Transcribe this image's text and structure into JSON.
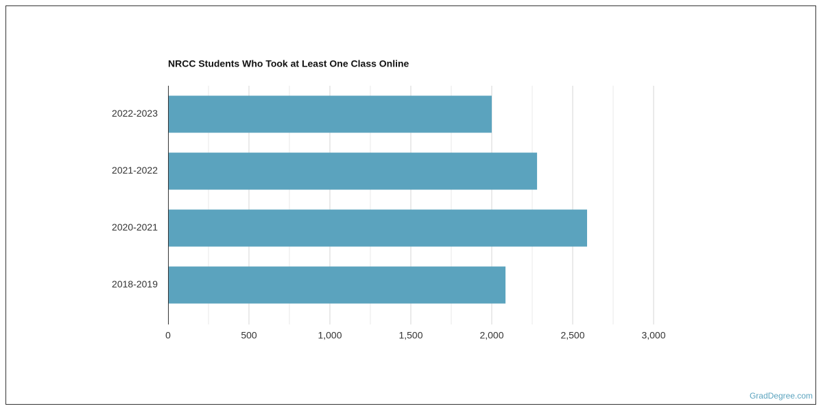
{
  "chart_data": {
    "type": "barh",
    "title": "NRCC Students Who Took at Least One Class Online",
    "categories": [
      "2022-2023",
      "2021-2022",
      "2020-2021",
      "2018-2019"
    ],
    "values": [
      2000,
      2280,
      2589,
      2085
    ],
    "color": "#5ba3be",
    "xlim": [
      0,
      3000
    ],
    "xticks": [
      0,
      500,
      {
        "value": 1000,
        "label": "1,000"
      },
      {
        "value": 1500,
        "label": "1,500"
      },
      {
        "value": 2000,
        "label": "2,000"
      },
      {
        "value": 2500,
        "label": "2,500"
      },
      {
        "value": 3000,
        "label": "3,000"
      }
    ],
    "xminor": [
      250,
      750,
      1250,
      1750,
      2250,
      2750
    ],
    "grid": true
  },
  "footer": "GradDegree.com"
}
